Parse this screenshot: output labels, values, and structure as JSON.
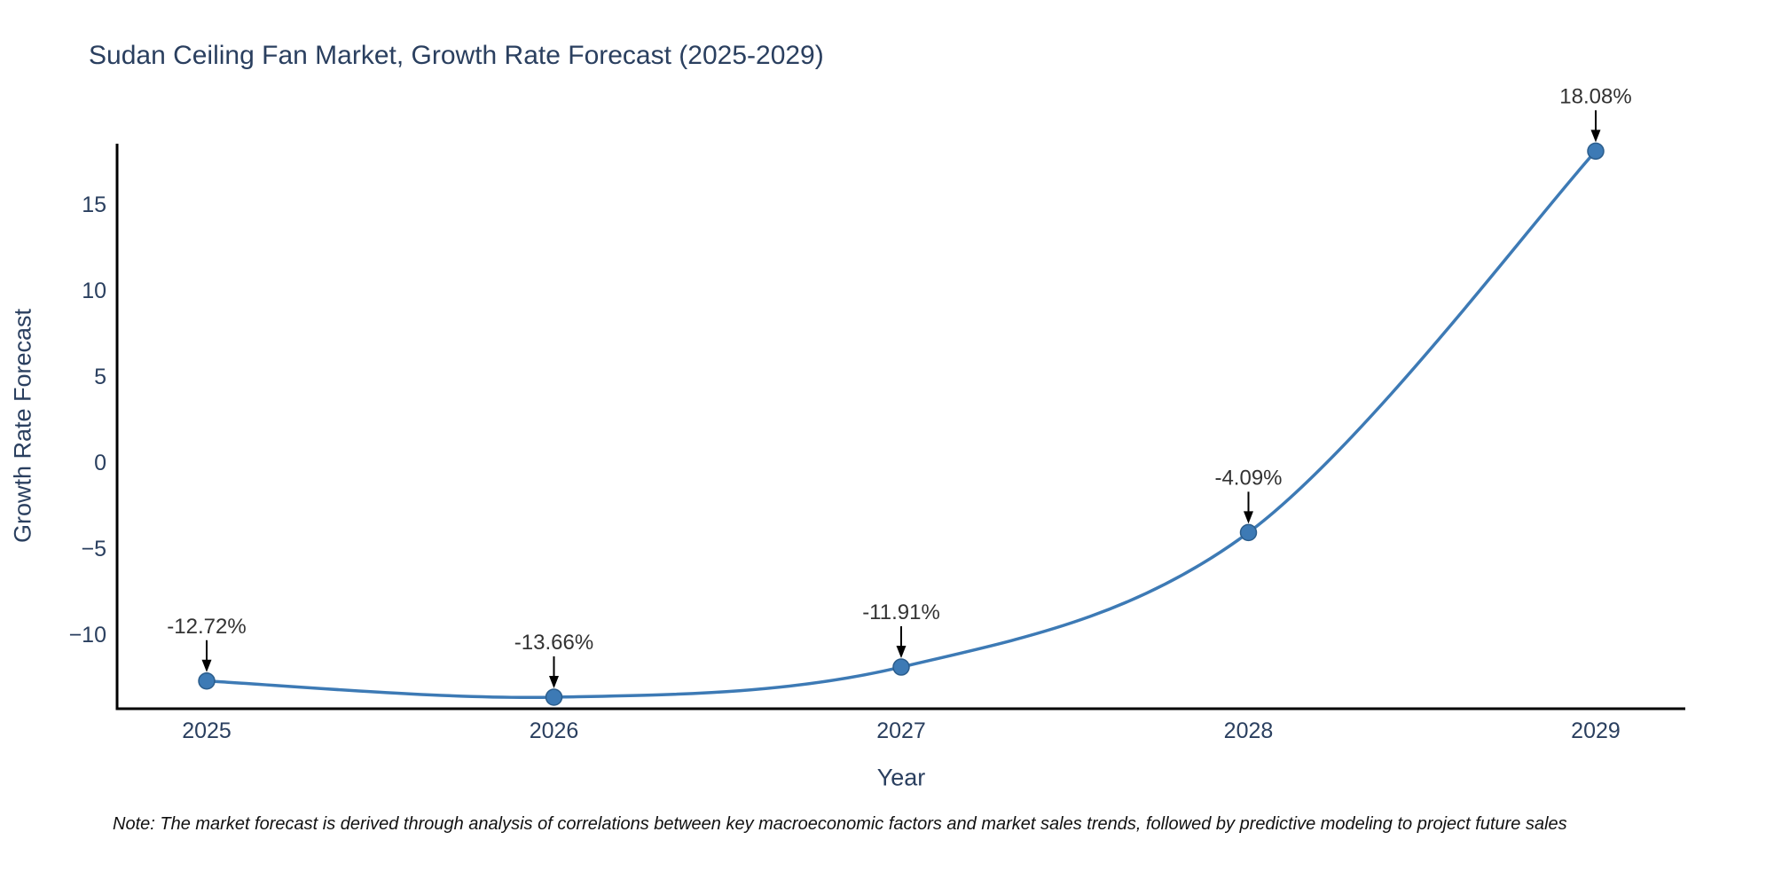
{
  "note": "Note: The market forecast is derived through analysis of correlations between key macroeconomic factors and market sales trends, followed by predictive modeling to project future sales",
  "chart_data": {
    "type": "line",
    "title": "Sudan Ceiling Fan Market, Growth Rate Forecast (2025-2029)",
    "xlabel": "Year",
    "ylabel": "Growth Rate Forecast",
    "x": [
      2025,
      2026,
      2027,
      2028,
      2029
    ],
    "values": [
      -12.72,
      -13.66,
      -11.91,
      -4.09,
      18.08
    ],
    "point_labels": [
      "-12.72%",
      "-13.66%",
      "-11.91%",
      "-4.09%",
      "18.08%"
    ],
    "line_shape": "spline",
    "grid": false,
    "legend": "none",
    "xticks": [
      {
        "value": 2025,
        "label": "2025"
      },
      {
        "value": 2026,
        "label": "2026"
      },
      {
        "value": 2027,
        "label": "2027"
      },
      {
        "value": 2028,
        "label": "2028"
      },
      {
        "value": 2029,
        "label": "2029"
      }
    ],
    "yticks": [
      {
        "value": 15,
        "label": "15"
      },
      {
        "value": 10,
        "label": "10"
      },
      {
        "value": 5,
        "label": "5"
      },
      {
        "value": 0,
        "label": "0"
      },
      {
        "value": -5,
        "label": "−5"
      },
      {
        "value": -10,
        "label": "−10"
      }
    ],
    "xlim": [
      2024.742,
      2029.258
    ],
    "ylim": [
      -14.33,
      18.51
    ],
    "colors": {
      "line": "#3d7ab5",
      "marker": "#3d7ab5",
      "marker_edge": "#2b5d8c",
      "axis": "#000000",
      "tick_text": "#2a3f5f",
      "annotation_text": "#333333",
      "arrow": "#000000"
    }
  }
}
